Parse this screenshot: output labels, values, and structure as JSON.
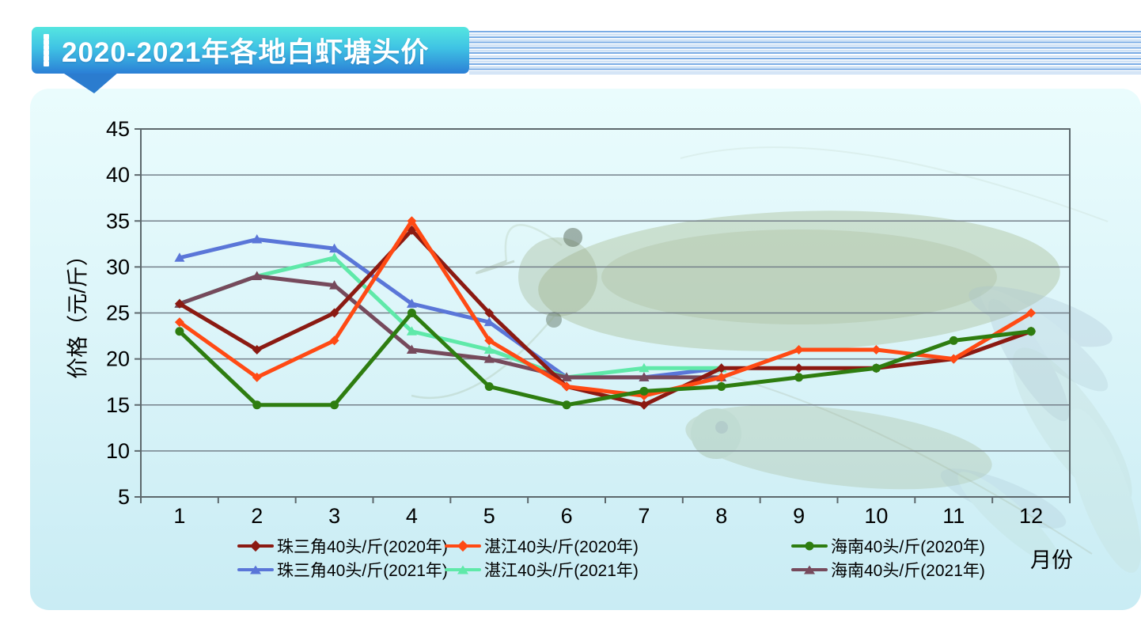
{
  "header": {
    "title": "2020-2021年各地白虾塘头价"
  },
  "chart_data": {
    "type": "line",
    "title": "2020-2021年各地白虾塘头价",
    "xlabel": "月份",
    "ylabel": "价格（元/斤）",
    "x": [
      1,
      2,
      3,
      4,
      5,
      6,
      7,
      8,
      9,
      10,
      11,
      12
    ],
    "x_tick_labels": [
      "1",
      "2",
      "3",
      "4",
      "5",
      "6",
      "7",
      "8",
      "9",
      "10",
      "11",
      "12"
    ],
    "y_ticks": [
      5,
      10,
      15,
      20,
      25,
      30,
      35,
      40,
      45
    ],
    "ylim": [
      5,
      45
    ],
    "grid": true,
    "legend_position": "bottom",
    "series": [
      {
        "name": "珠三角40头/斤(2020年)",
        "color": "#8b1a12",
        "marker": "diamond",
        "values": [
          26,
          21,
          25,
          34,
          25,
          17,
          15,
          19,
          19,
          19,
          20,
          23
        ]
      },
      {
        "name": "湛江40头/斤(2020年)",
        "color": "#ff4a14",
        "marker": "diamond",
        "values": [
          24,
          18,
          22,
          35,
          22,
          17,
          16,
          18,
          21,
          21,
          20,
          25
        ]
      },
      {
        "name": "海南40头/斤(2020年)",
        "color": "#2e7d10",
        "marker": "circle",
        "values": [
          23,
          15,
          15,
          25,
          17,
          15,
          16.5,
          17,
          18,
          19,
          22,
          23
        ]
      },
      {
        "name": "珠三角40头/斤(2021年)",
        "color": "#5a76d8",
        "marker": "triangle",
        "values": [
          31,
          33,
          32,
          26,
          24,
          18,
          18,
          19
        ]
      },
      {
        "name": "湛江40头/斤(2021年)",
        "color": "#5fe9a9",
        "marker": "triangle",
        "values": [
          26,
          29,
          31,
          23,
          21,
          18,
          19,
          19
        ]
      },
      {
        "name": "海南40头/斤(2021年)",
        "color": "#764a5c",
        "marker": "triangle",
        "values": [
          26,
          29,
          28,
          21,
          20,
          18,
          18,
          18
        ]
      }
    ]
  }
}
